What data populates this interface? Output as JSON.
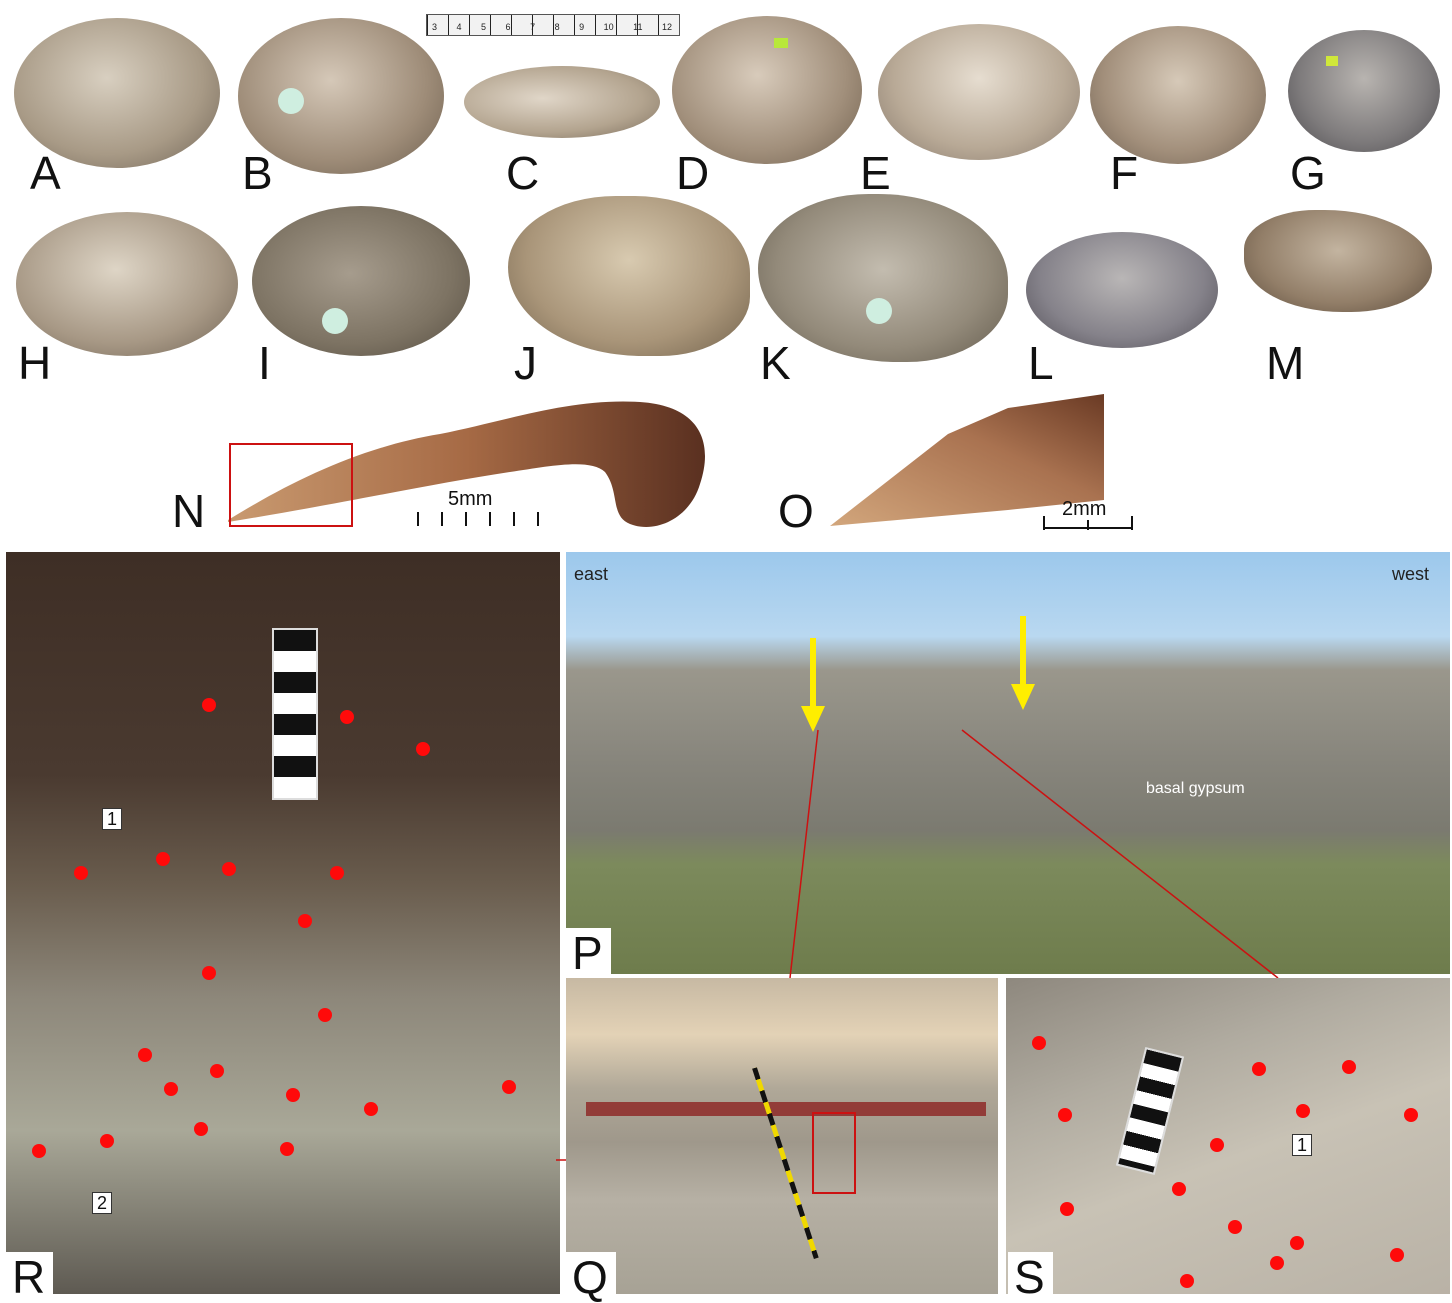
{
  "panels": {
    "A": "A",
    "B": "B",
    "C": "C",
    "D": "D",
    "E": "E",
    "F": "F",
    "G": "G",
    "H": "H",
    "I": "I",
    "J": "J",
    "K": "K",
    "L": "L",
    "M": "M",
    "N": "N",
    "O": "O",
    "P": "P",
    "Q": "Q",
    "R": "R",
    "S": "S"
  },
  "ruler_ticks": [
    "3",
    "4",
    "5",
    "6",
    "7",
    "8",
    "9",
    "10",
    "11",
    "12"
  ],
  "scale_n": "5mm",
  "scale_o": "2mm",
  "panel_p": {
    "east": "east",
    "west": "west",
    "gypsum": "basal gypsum"
  },
  "labels": {
    "r1": "1",
    "r2": "2",
    "s1": "1"
  },
  "colors": {
    "marker": "#ff0a0a",
    "arrow": "#ffee00",
    "box": "#cc1111",
    "sky": "#9cc8ec"
  }
}
